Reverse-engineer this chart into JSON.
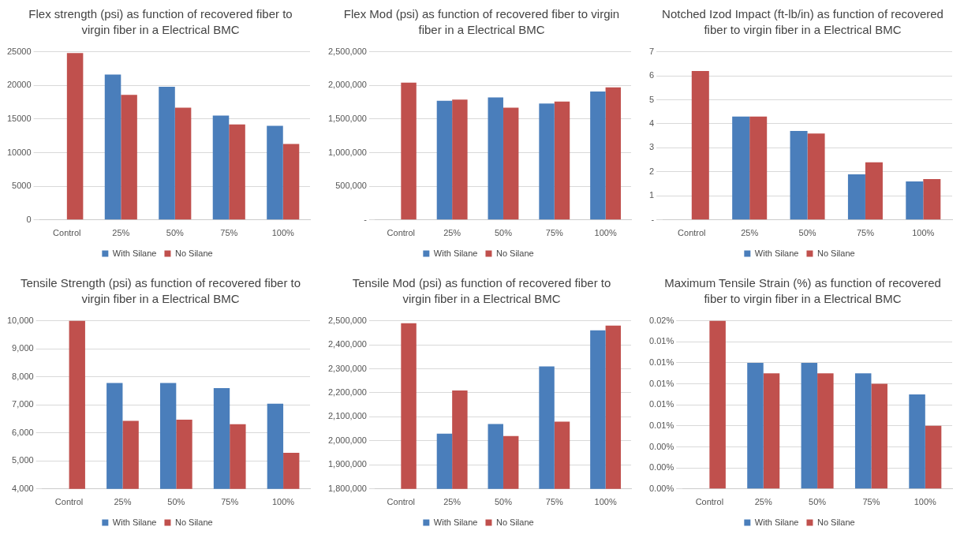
{
  "chart_data": [
    {
      "type": "bar",
      "title": "Flex strength (psi) as function of recovered fiber to virgin fiber in a Electrical BMC",
      "categories": [
        "Control",
        "25%",
        "50%",
        "75%",
        "100%"
      ],
      "series": [
        {
          "name": "With Silane",
          "color": "#4a7ebb",
          "values": [
            null,
            21600,
            19800,
            15500,
            14000
          ]
        },
        {
          "name": "No Silane",
          "color": "#c0504d",
          "values": [
            24800,
            18600,
            16700,
            14200,
            11300
          ]
        }
      ],
      "ylim": [
        0,
        25000
      ],
      "yticks": [
        0,
        5000,
        10000,
        15000,
        20000,
        25000
      ],
      "grid": "y",
      "legend": "bottom"
    },
    {
      "type": "bar",
      "title": "Flex Mod (psi) as function of recovered fiber to virgin fiber in a Electrical BMC",
      "categories": [
        "Control",
        "25%",
        "50%",
        "75%",
        "100%"
      ],
      "series": [
        {
          "name": "With Silane",
          "color": "#4a7ebb",
          "values": [
            null,
            1770000,
            1820000,
            1730000,
            1910000
          ]
        },
        {
          "name": "No Silane",
          "color": "#c0504d",
          "values": [
            2040000,
            1790000,
            1670000,
            1760000,
            1970000
          ]
        }
      ],
      "ylim": [
        0,
        2500000
      ],
      "yticks": [
        {
          "value": 0,
          "label": "-"
        },
        {
          "value": 500000,
          "label": "500,000"
        },
        {
          "value": 1000000,
          "label": "1,000,000"
        },
        {
          "value": 1500000,
          "label": "1,500,000"
        },
        {
          "value": 2000000,
          "label": "2,000,000"
        },
        {
          "value": 2500000,
          "label": "2,500,000"
        }
      ],
      "grid": "y",
      "legend": "bottom"
    },
    {
      "type": "bar",
      "title": "Notched Izod Impact (ft-lb/in) as function of recovered fiber to virgin fiber in a Electrical BMC",
      "categories": [
        "Control",
        "25%",
        "50%",
        "75%",
        "100%"
      ],
      "series": [
        {
          "name": "With Silane",
          "color": "#4a7ebb",
          "values": [
            null,
            4.3,
            3.7,
            1.9,
            1.6
          ]
        },
        {
          "name": "No Silane",
          "color": "#c0504d",
          "values": [
            6.2,
            4.3,
            3.6,
            2.4,
            1.7
          ]
        }
      ],
      "ylim": [
        0,
        7
      ],
      "yticks": [
        {
          "value": 0,
          "label": "-"
        },
        1,
        2,
        3,
        4,
        5,
        6,
        7
      ],
      "grid": "y",
      "legend": "bottom"
    },
    {
      "type": "bar",
      "title": "Tensile Strength (psi) as function of recovered fiber to virgin fiber in a Electrical BMC",
      "categories": [
        "Control",
        "25%",
        "50%",
        "75%",
        "100%"
      ],
      "series": [
        {
          "name": "With Silane",
          "color": "#4a7ebb",
          "values": [
            null,
            7780,
            7780,
            7600,
            7040
          ]
        },
        {
          "name": "No Silane",
          "color": "#c0504d",
          "values": [
            10000,
            6430,
            6470,
            6310,
            5290
          ]
        }
      ],
      "ylim": [
        4000,
        10000
      ],
      "yticks": [
        {
          "value": 4000,
          "label": "4,000"
        },
        {
          "value": 5000,
          "label": "5,000"
        },
        {
          "value": 6000,
          "label": "6,000"
        },
        {
          "value": 7000,
          "label": "7,000"
        },
        {
          "value": 8000,
          "label": "8,000"
        },
        {
          "value": 9000,
          "label": "9,000"
        },
        {
          "value": 10000,
          "label": "10,000"
        }
      ],
      "grid": "y",
      "legend": "bottom"
    },
    {
      "type": "bar",
      "title": "Tensile Mod (psi) as function of recovered fiber to virgin fiber in a Electrical BMC",
      "categories": [
        "Control",
        "25%",
        "50%",
        "75%",
        "100%"
      ],
      "series": [
        {
          "name": "With Silane",
          "color": "#4a7ebb",
          "values": [
            null,
            2030000,
            2070000,
            2310000,
            2460000
          ]
        },
        {
          "name": "No Silane",
          "color": "#c0504d",
          "values": [
            2490000,
            2210000,
            2020000,
            2080000,
            2480000
          ]
        }
      ],
      "ylim": [
        1800000,
        2500000
      ],
      "yticks": [
        {
          "value": 1800000,
          "label": "1,800,000"
        },
        {
          "value": 1900000,
          "label": "1,900,000"
        },
        {
          "value": 2000000,
          "label": "2,000,000"
        },
        {
          "value": 2100000,
          "label": "2,100,000"
        },
        {
          "value": 2200000,
          "label": "2,200,000"
        },
        {
          "value": 2300000,
          "label": "2,300,000"
        },
        {
          "value": 2400000,
          "label": "2,400,000"
        },
        {
          "value": 2500000,
          "label": "2,500,000"
        }
      ],
      "grid": "y",
      "legend": "bottom"
    },
    {
      "type": "bar",
      "title": "Maximum Tensile Strain (%) as function of recovered fiber to virgin fiber in a Electrical BMC",
      "categories": [
        "Control",
        "25%",
        "50%",
        "75%",
        "100%"
      ],
      "series": [
        {
          "name": "With Silane",
          "color": "#4a7ebb",
          "values": [
            null,
            0.012,
            0.012,
            0.011,
            0.009
          ]
        },
        {
          "name": "No Silane",
          "color": "#c0504d",
          "values": [
            0.016,
            0.011,
            0.011,
            0.01,
            0.006
          ]
        }
      ],
      "ylim": [
        0,
        0.016
      ],
      "yticks": [
        {
          "value": 0,
          "label": "0.00%"
        },
        {
          "value": 0.002,
          "label": "0.00%"
        },
        {
          "value": 0.004,
          "label": "0.00%"
        },
        {
          "value": 0.006,
          "label": "0.01%"
        },
        {
          "value": 0.008,
          "label": "0.01%"
        },
        {
          "value": 0.01,
          "label": "0.01%"
        },
        {
          "value": 0.012,
          "label": "0.01%"
        },
        {
          "value": 0.014,
          "label": "0.01%"
        },
        {
          "value": 0.016,
          "label": "0.02%"
        }
      ],
      "grid": "y",
      "legend": "bottom"
    }
  ]
}
